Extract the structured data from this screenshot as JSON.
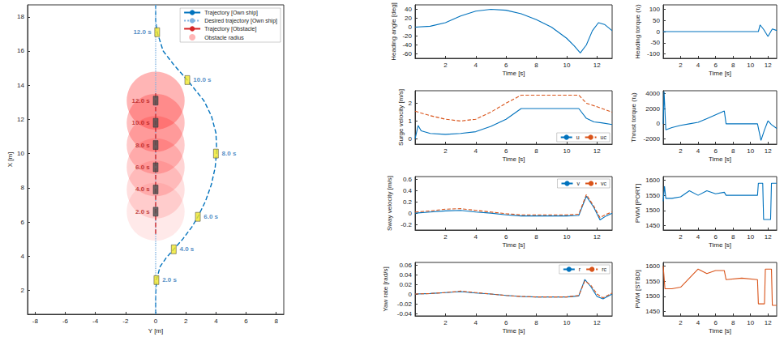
{
  "chart_data": [
    {
      "type": "line",
      "xlabel": "Y [m]",
      "ylabel": "X [m]",
      "xlim": [
        -8.5,
        8.5
      ],
      "xticks": [
        -8,
        -6,
        -4,
        -2,
        0,
        2,
        4,
        6,
        8
      ],
      "ylim": [
        0.6,
        18.7
      ],
      "yticks": [
        2,
        4,
        6,
        8,
        10,
        12,
        14,
        16,
        18
      ],
      "grid": false,
      "legend": "upper right",
      "series": [
        {
          "name": "Trajectory [Own ship]",
          "color": "#0072bd",
          "line_style": "dashed",
          "x": [
            0,
            0,
            0.05,
            0.3,
            0.7,
            1.2,
            1.8,
            2.4,
            2.8,
            3.3,
            3.7,
            3.95,
            4.05,
            4.0,
            3.7,
            3.2,
            2.1,
            1.2,
            0.5,
            0.1,
            0,
            0
          ],
          "y": [
            0.6,
            1.5,
            2.6,
            3.4,
            3.9,
            4.4,
            5.0,
            5.7,
            6.3,
            7.2,
            8.2,
            9.2,
            10.2,
            11.2,
            12.2,
            13.1,
            14.3,
            15.2,
            16.0,
            17.1,
            17.8,
            18.7
          ]
        },
        {
          "name": "Desired trajectory [Own ship]",
          "color": "#7fb2e0",
          "line_style": "dotted",
          "x": [
            0,
            0
          ],
          "y": [
            0.6,
            18.7
          ]
        },
        {
          "name": "Trajectory [Obstacle]",
          "color": "#d62728",
          "line_style": "dashed",
          "x": [
            0,
            0
          ],
          "y": [
            5.3,
            13.6
          ]
        },
        {
          "name": "Obstacle radius",
          "type": "circle",
          "color": "#ff2a2a",
          "x": [
            0,
            0,
            0,
            0,
            0,
            0
          ],
          "y": [
            6.6,
            7.9,
            9.2,
            10.5,
            11.8,
            13.1
          ],
          "radius": [
            1.8,
            1.8,
            1.8,
            1.8,
            1.8,
            1.8
          ]
        },
        {
          "type": "scatter",
          "marker": "ship",
          "color": "#1f6fb5",
          "x": [
            0.05,
            1.2,
            2.8,
            4.0,
            2.1,
            0.1
          ],
          "y": [
            2.6,
            4.4,
            6.3,
            10.0,
            14.3,
            17.1
          ],
          "labels": [
            "2.0 s",
            "4.0 s",
            "6.0 s",
            "8.0 s",
            "10.0 s",
            "12.0 s"
          ]
        },
        {
          "type": "scatter",
          "marker": "obstacle",
          "color": "#b01818",
          "x": [
            0,
            0,
            0,
            0,
            0,
            0
          ],
          "y": [
            6.6,
            7.9,
            9.2,
            10.5,
            11.8,
            13.1
          ],
          "labels": [
            "2.0 s",
            "4.0 s",
            "6.0 s",
            "8.0 s",
            "10.0 s",
            "12.0 s"
          ]
        }
      ]
    },
    {
      "type": "line",
      "xlabel": "Time [s]",
      "ylabel": "Heading angle [deg]",
      "xlim": [
        0,
        13
      ],
      "xticks": [
        2,
        4,
        6,
        8,
        10,
        12
      ],
      "ylim": [
        -70,
        50
      ],
      "yticks": [
        -60,
        -40,
        -20,
        0,
        20,
        40
      ],
      "grid": false,
      "series": [
        {
          "color": "#0072bd",
          "line_style": "solid",
          "x": [
            0,
            1,
            2,
            3,
            4,
            5,
            6,
            7,
            8,
            9,
            10,
            10.5,
            10.9,
            11.3,
            11.7,
            12.1,
            12.5,
            13
          ],
          "y": [
            0,
            2,
            10,
            25,
            36,
            40,
            38,
            30,
            17,
            0,
            -25,
            -42,
            -58,
            -40,
            -8,
            10,
            6,
            -8
          ]
        }
      ]
    },
    {
      "type": "line",
      "xlabel": "Time [s]",
      "ylabel": "Surge velocity [m/s]",
      "xlim": [
        0,
        13
      ],
      "xticks": [
        2,
        4,
        6,
        8,
        10,
        12
      ],
      "ylim": [
        -0.3,
        2.7
      ],
      "yticks": [
        0,
        1,
        2
      ],
      "grid": false,
      "legend": "lower right",
      "series": [
        {
          "name": "u",
          "color": "#0072bd",
          "line_style": "solid",
          "x": [
            0,
            0.2,
            0.4,
            1,
            2,
            3,
            4,
            5,
            6,
            7,
            10.8,
            11.3,
            11.8,
            12.3,
            13
          ],
          "y": [
            0,
            0.75,
            0.45,
            0.3,
            0.25,
            0.3,
            0.4,
            0.7,
            1.1,
            1.7,
            1.7,
            1.15,
            0.95,
            0.9,
            0.8
          ]
        },
        {
          "name": "uc",
          "color": "#d95319",
          "line_style": "dashed",
          "x": [
            0,
            1,
            2,
            3,
            4,
            5,
            6,
            7,
            10.8,
            11.3,
            12,
            13
          ],
          "y": [
            1.55,
            1.3,
            1.1,
            1.0,
            1.1,
            1.5,
            2.0,
            2.45,
            2.45,
            2.0,
            1.8,
            1.5
          ]
        }
      ]
    },
    {
      "type": "line",
      "xlabel": "Time [s]",
      "ylabel": "Sway velocity [m/s]",
      "xlim": [
        0,
        13
      ],
      "xticks": [
        2,
        4,
        6,
        8,
        10,
        12
      ],
      "ylim": [
        -0.3,
        0.65
      ],
      "yticks": [
        -0.2,
        0,
        0.2,
        0.4,
        0.6
      ],
      "grid": false,
      "legend": "upper right",
      "series": [
        {
          "name": "v",
          "color": "#0072bd",
          "line_style": "solid",
          "x": [
            0,
            1,
            2,
            3,
            4,
            5,
            6,
            7,
            8,
            9,
            10,
            10.8,
            11.3,
            11.8,
            12.2,
            12.6,
            13
          ],
          "y": [
            0,
            0.02,
            0.04,
            0.05,
            0.02,
            0,
            -0.03,
            -0.05,
            -0.05,
            -0.05,
            -0.05,
            -0.04,
            0.3,
            0.1,
            -0.12,
            -0.05,
            0
          ]
        },
        {
          "name": "vc",
          "color": "#d95319",
          "line_style": "dashed",
          "x": [
            0,
            1,
            2,
            3,
            4,
            5,
            6,
            7,
            8,
            9,
            10,
            10.8,
            11.3,
            11.8,
            12.2,
            12.6,
            13
          ],
          "y": [
            0.02,
            0.04,
            0.07,
            0.08,
            0.05,
            0.02,
            -0.01,
            -0.03,
            -0.03,
            -0.03,
            -0.03,
            -0.02,
            0.33,
            0.12,
            -0.08,
            -0.02,
            0.02
          ]
        }
      ]
    },
    {
      "type": "line",
      "xlabel": "Time [s]",
      "ylabel": "Yaw rate [rad/s]",
      "xlim": [
        0,
        13
      ],
      "xticks": [
        2,
        4,
        6,
        8,
        10,
        12
      ],
      "ylim": [
        -0.045,
        0.065
      ],
      "yticks": [
        -0.04,
        -0.02,
        0,
        0.02,
        0.04,
        0.06
      ],
      "grid": false,
      "legend": "upper right",
      "series": [
        {
          "name": "r",
          "color": "#0072bd",
          "line_style": "solid",
          "x": [
            0,
            1,
            2,
            3,
            4,
            5,
            6,
            7,
            8,
            9,
            10,
            10.8,
            11.2,
            11.6,
            12,
            12.4,
            13
          ],
          "y": [
            0,
            0.001,
            0.003,
            0.005,
            0.002,
            0,
            -0.003,
            -0.005,
            -0.006,
            -0.006,
            -0.006,
            -0.004,
            0.03,
            0.015,
            -0.005,
            -0.01,
            0
          ]
        },
        {
          "name": "rc",
          "color": "#d95319",
          "line_style": "dashed",
          "x": [
            0,
            1,
            2,
            3,
            4,
            5,
            6,
            7,
            8,
            9,
            10,
            10.8,
            11.2,
            11.6,
            12,
            12.4,
            13
          ],
          "y": [
            0,
            0.001,
            0.003,
            0.006,
            0.003,
            0,
            -0.003,
            -0.005,
            -0.006,
            -0.006,
            -0.006,
            -0.003,
            0.027,
            0.018,
            0,
            -0.008,
            0.002
          ]
        }
      ]
    },
    {
      "type": "line",
      "xlabel": "Time [s]",
      "ylabel": "Heading torque (τᵣ)",
      "xlim": [
        0,
        13
      ],
      "xticks": [
        2,
        4,
        6,
        8,
        10,
        12
      ],
      "ylim": [
        -120,
        120
      ],
      "yticks": [
        -100,
        -50,
        0,
        50,
        100
      ],
      "grid": false,
      "series": [
        {
          "color": "#0072bd",
          "line_style": "solid",
          "x": [
            0,
            2,
            4,
            6,
            8,
            10,
            10.9,
            11.1,
            11.5,
            12,
            12.5,
            13
          ],
          "y": [
            0,
            0,
            0,
            0,
            0,
            0,
            0,
            30,
            10,
            -22,
            12,
            5
          ]
        }
      ]
    },
    {
      "type": "line",
      "xlabel": "Time [s]",
      "ylabel": "Thrust torque (τᵤ)",
      "xlim": [
        0,
        13
      ],
      "xticks": [
        2,
        4,
        6,
        8,
        10,
        12
      ],
      "ylim": [
        -2700,
        4400
      ],
      "yticks": [
        -2000,
        0,
        2000,
        4000
      ],
      "grid": false,
      "series": [
        {
          "color": "#0072bd",
          "line_style": "solid",
          "x": [
            0,
            0.1,
            0.3,
            1,
            2,
            3,
            4,
            5,
            6,
            7,
            7.2,
            10.8,
            11.2,
            11.6,
            12,
            12.4,
            13
          ],
          "y": [
            0,
            4300,
            -800,
            -500,
            -200,
            0,
            200,
            700,
            1200,
            1700,
            0,
            0,
            -2200,
            -800,
            400,
            -100,
            -600
          ]
        }
      ]
    },
    {
      "type": "line",
      "xlabel": "Time [s]",
      "ylabel": "PWM [PORT]",
      "xlim": [
        0,
        13
      ],
      "xticks": [
        2,
        4,
        6,
        8,
        10,
        12
      ],
      "ylim": [
        1435,
        1612
      ],
      "yticks": [
        1450,
        1500,
        1550,
        1600
      ],
      "grid": false,
      "series": [
        {
          "color": "#0072bd",
          "line_style": "solid",
          "x": [
            0,
            0.15,
            0.3,
            1,
            2,
            3,
            4,
            5,
            6,
            7,
            7.2,
            10.8,
            10.9,
            11.4,
            11.5,
            12.3,
            12.4,
            13
          ],
          "y": [
            1530,
            1580,
            1540,
            1540,
            1545,
            1565,
            1550,
            1565,
            1555,
            1560,
            1550,
            1550,
            1590,
            1590,
            1470,
            1470,
            1590,
            1590
          ]
        }
      ]
    },
    {
      "type": "line",
      "xlabel": "Time [s]",
      "ylabel": "PWM [STBD]",
      "xlim": [
        0,
        13
      ],
      "xticks": [
        2,
        4,
        6,
        8,
        10,
        12
      ],
      "ylim": [
        1435,
        1612
      ],
      "yticks": [
        1450,
        1500,
        1550,
        1600
      ],
      "grid": false,
      "series": [
        {
          "color": "#d95319",
          "line_style": "solid",
          "x": [
            0,
            0.2,
            1,
            2,
            3,
            4,
            5,
            6,
            7,
            7.2,
            9,
            10.8,
            10.9,
            11.6,
            11.7,
            12.4,
            12.5,
            13
          ],
          "y": [
            1600,
            1525,
            1525,
            1530,
            1560,
            1590,
            1575,
            1585,
            1585,
            1555,
            1560,
            1555,
            1475,
            1475,
            1590,
            1590,
            1470,
            1470
          ]
        }
      ]
    }
  ]
}
